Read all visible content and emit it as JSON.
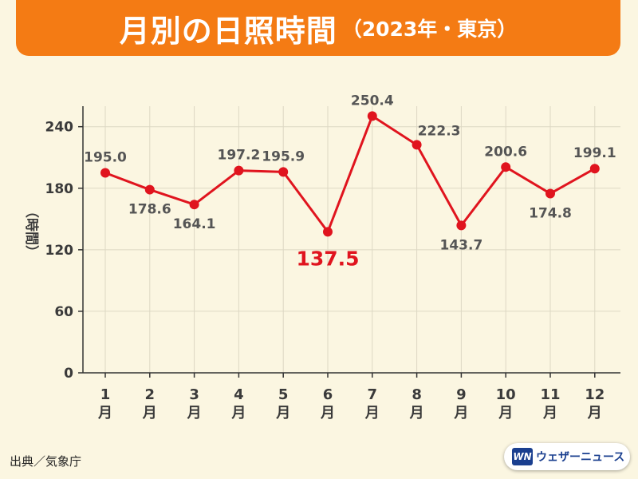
{
  "header": {
    "title": "月別の日照時間",
    "subtitle": "（2023年・東京）"
  },
  "source": "出典／気象庁",
  "brand": {
    "mark": "WN",
    "name": "ウェザーニュース"
  },
  "colors": {
    "line": "#e0141e",
    "highlight": "#e0141e",
    "header": "#f47b14",
    "background": "#fbf6e1"
  },
  "chart_data": {
    "type": "line",
    "title": "月別の日照時間",
    "ylabel": "（時間）",
    "xlabel": "",
    "categories": [
      "1月",
      "2月",
      "3月",
      "4月",
      "5月",
      "6月",
      "7月",
      "8月",
      "9月",
      "10月",
      "11月",
      "12月"
    ],
    "x_numbers": [
      "1",
      "2",
      "3",
      "4",
      "5",
      "6",
      "7",
      "8",
      "9",
      "10",
      "11",
      "12"
    ],
    "x_unit": "月",
    "values": [
      195.0,
      178.6,
      164.1,
      197.2,
      195.9,
      137.5,
      250.4,
      222.3,
      143.7,
      200.6,
      174.8,
      199.1
    ],
    "value_labels": [
      "195.0",
      "178.6",
      "164.1",
      "197.2",
      "195.9",
      "137.5",
      "250.4",
      "222.3",
      "143.7",
      "200.6",
      "174.8",
      "199.1"
    ],
    "label_position": [
      "above",
      "below",
      "below",
      "above",
      "above",
      "below",
      "above",
      "above",
      "below",
      "above",
      "below",
      "above"
    ],
    "highlight_index": 5,
    "ylim": [
      0,
      260
    ],
    "yticks": [
      0,
      60,
      120,
      180,
      240
    ],
    "grid": true,
    "legend": "none"
  }
}
